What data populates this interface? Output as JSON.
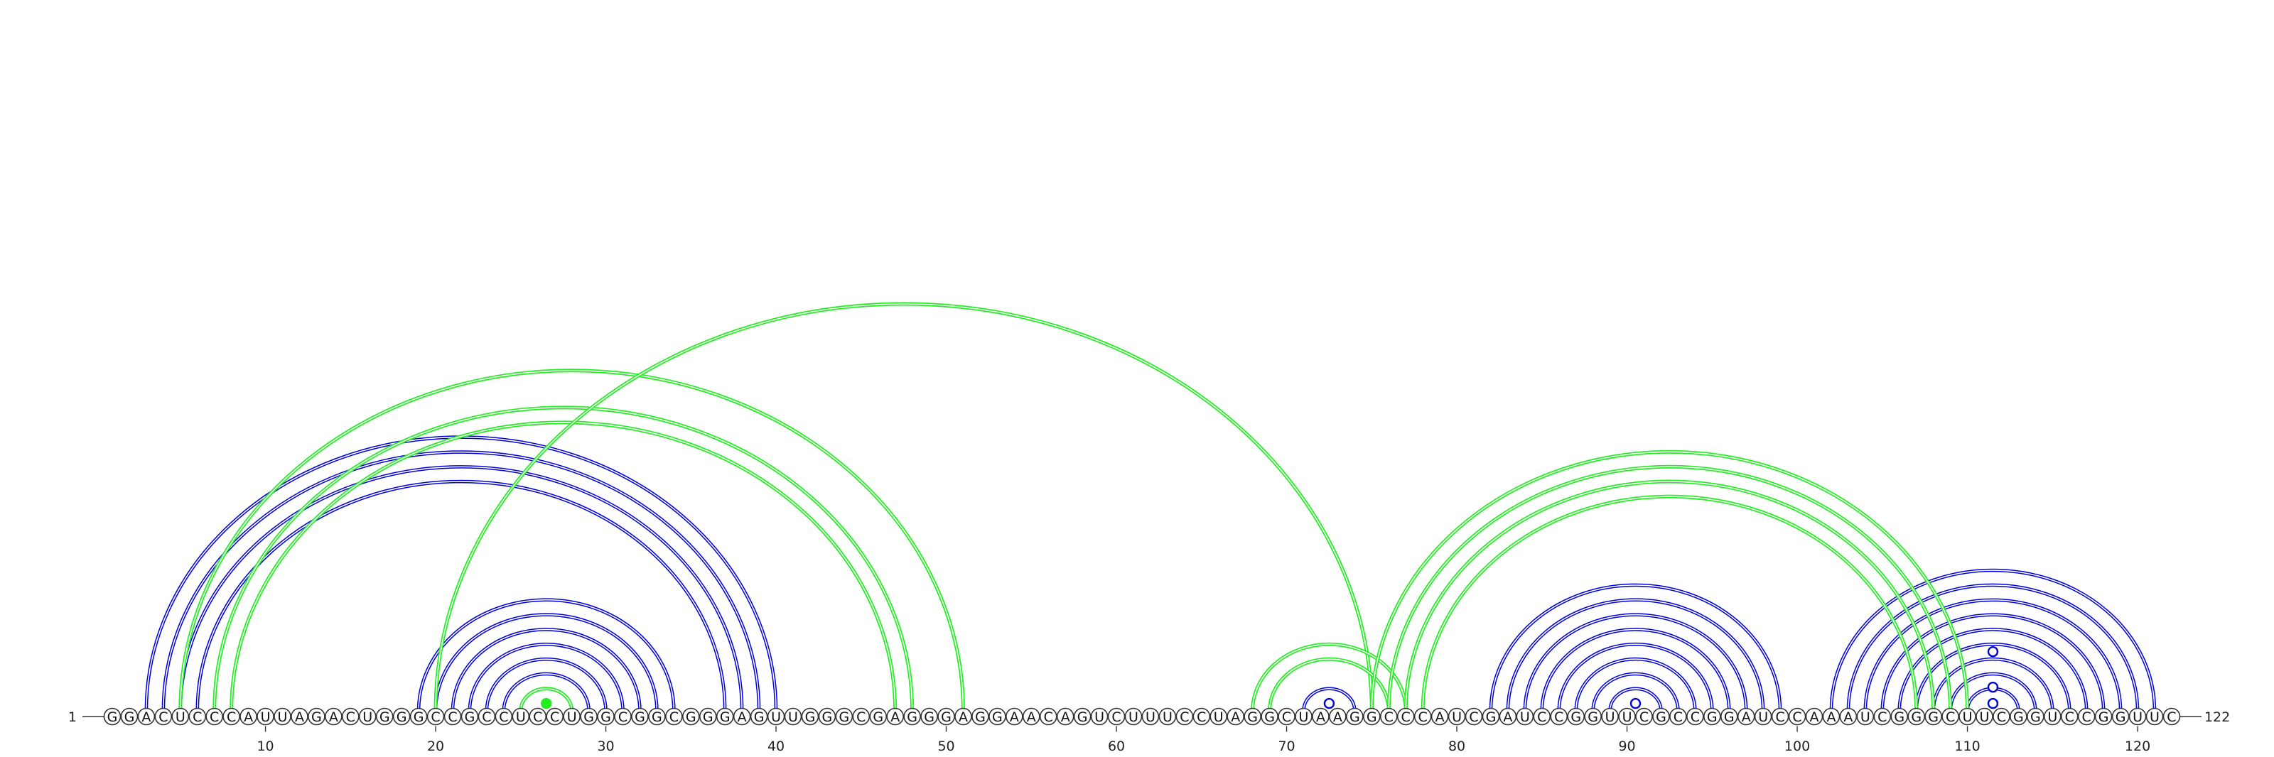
{
  "sequence": "GGACUCCCAUUAGACUGGGCCGCCUCCUGGCGGCGGGAGUUGGGCGAGGGAGGAACAGUCUUUCCUAGGCUAAGGCCCAUCGAUCCGGUUCGCCGGAUCCAAAUCGGGCUUCGGUCCGGUUC",
  "start_label": "1",
  "end_label": "122",
  "ticks": [
    {
      "pos": 10,
      "label": "10"
    },
    {
      "pos": 20,
      "label": "20"
    },
    {
      "pos": 30,
      "label": "30"
    },
    {
      "pos": 40,
      "label": "40"
    },
    {
      "pos": 50,
      "label": "50"
    },
    {
      "pos": 60,
      "label": "60"
    },
    {
      "pos": 70,
      "label": "70"
    },
    {
      "pos": 80,
      "label": "80"
    },
    {
      "pos": 90,
      "label": "90"
    },
    {
      "pos": 100,
      "label": "100"
    },
    {
      "pos": 110,
      "label": "110"
    },
    {
      "pos": 120,
      "label": "120"
    }
  ],
  "colors": {
    "blue": "#0000dd",
    "green": "#22ee22"
  },
  "pairs": [
    {
      "i": 3,
      "j": 40,
      "color": "blue"
    },
    {
      "i": 4,
      "j": 39,
      "color": "blue"
    },
    {
      "i": 5,
      "j": 38,
      "color": "blue"
    },
    {
      "i": 6,
      "j": 37,
      "color": "blue"
    },
    {
      "i": 19,
      "j": 34,
      "color": "blue"
    },
    {
      "i": 20,
      "j": 33,
      "color": "blue"
    },
    {
      "i": 21,
      "j": 32,
      "color": "blue"
    },
    {
      "i": 22,
      "j": 31,
      "color": "blue"
    },
    {
      "i": 23,
      "j": 30,
      "color": "blue"
    },
    {
      "i": 24,
      "j": 29,
      "color": "blue"
    },
    {
      "i": 25,
      "j": 28,
      "color": "blue"
    },
    {
      "i": 71,
      "j": 74,
      "color": "blue"
    },
    {
      "i": 82,
      "j": 99,
      "color": "blue"
    },
    {
      "i": 83,
      "j": 98,
      "color": "blue"
    },
    {
      "i": 84,
      "j": 97,
      "color": "blue"
    },
    {
      "i": 85,
      "j": 96,
      "color": "blue"
    },
    {
      "i": 86,
      "j": 95,
      "color": "blue"
    },
    {
      "i": 87,
      "j": 94,
      "color": "blue"
    },
    {
      "i": 88,
      "j": 93,
      "color": "blue"
    },
    {
      "i": 89,
      "j": 92,
      "color": "blue"
    },
    {
      "i": 102,
      "j": 121,
      "color": "blue"
    },
    {
      "i": 103,
      "j": 120,
      "color": "blue"
    },
    {
      "i": 104,
      "j": 119,
      "color": "blue"
    },
    {
      "i": 105,
      "j": 118,
      "color": "blue"
    },
    {
      "i": 106,
      "j": 117,
      "color": "blue"
    },
    {
      "i": 107,
      "j": 116,
      "color": "blue"
    },
    {
      "i": 108,
      "j": 115,
      "color": "blue"
    },
    {
      "i": 109,
      "j": 114,
      "color": "blue"
    },
    {
      "i": 110,
      "j": 113,
      "color": "blue"
    },
    {
      "i": 5,
      "j": 51,
      "color": "green"
    },
    {
      "i": 7,
      "j": 48,
      "color": "green"
    },
    {
      "i": 8,
      "j": 47,
      "color": "green"
    },
    {
      "i": 20,
      "j": 75,
      "color": "green"
    },
    {
      "i": 25,
      "j": 28,
      "color": "green"
    },
    {
      "i": 68,
      "j": 77,
      "color": "green"
    },
    {
      "i": 69,
      "j": 76,
      "color": "green"
    },
    {
      "i": 75,
      "j": 110,
      "color": "green"
    },
    {
      "i": 76,
      "j": 109,
      "color": "green"
    },
    {
      "i": 77,
      "j": 108,
      "color": "green"
    },
    {
      "i": 78,
      "j": 107,
      "color": "green"
    }
  ],
  "markers": [
    {
      "pos": 26.5,
      "height": 0.5,
      "style": "filled",
      "color": "green"
    },
    {
      "pos": 72.5,
      "height": 0.5,
      "style": "open",
      "color": "blue"
    },
    {
      "pos": 90.5,
      "height": 0.5,
      "style": "open",
      "color": "blue"
    },
    {
      "pos": 111.5,
      "height": 0.5,
      "style": "open",
      "color": "blue"
    },
    {
      "pos": 111.5,
      "height": 1.6,
      "style": "open",
      "color": "blue"
    },
    {
      "pos": 111.5,
      "height": 4.0,
      "style": "open",
      "color": "blue"
    }
  ]
}
